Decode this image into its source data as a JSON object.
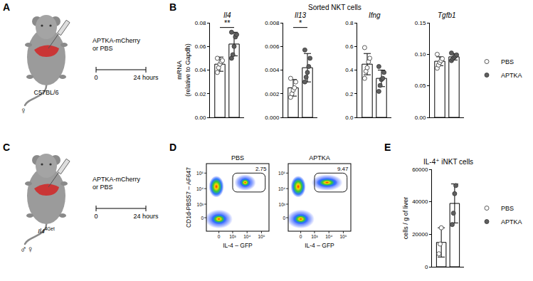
{
  "panel_labels": [
    "A",
    "B",
    "C",
    "D",
    "E"
  ],
  "group_title": "Sorted NKT cells",
  "schematics": [
    {
      "strain": "C57BL/6",
      "injection": [
        "APTKA-mCherry",
        "or PBS"
      ],
      "timeline": [
        "0",
        "24 hours"
      ],
      "sex": "♀"
    },
    {
      "strain": "Il4",
      "strain_sup": "4Get",
      "injection": [
        "APTKA-mCherry",
        "or PBS"
      ],
      "timeline": [
        "0",
        "24 hours"
      ],
      "sex": "♂♀"
    }
  ],
  "flow": {
    "x_label": "IL-4 – GFP",
    "y_label": "CD1d-PBS57 – AF647",
    "x_ticks": [
      "0",
      "10³",
      "10⁴",
      "10⁵"
    ],
    "y_ticks": [
      "0",
      "10³",
      "10⁴",
      "10⁵"
    ],
    "plots": [
      {
        "title": "PBS",
        "gate_percent": 2.75
      },
      {
        "title": "APTKA",
        "gate_percent": 9.47
      }
    ]
  },
  "chart_data": [
    {
      "type": "bar",
      "title": "Il4",
      "ylabel": [
        "mRNA",
        "(relative to Gapdh)"
      ],
      "categories": [
        "PBS",
        "APTKA"
      ],
      "values": [
        0.045,
        0.062
      ],
      "error": [
        0.006,
        0.01
      ],
      "points": [
        [
          0.038,
          0.042,
          0.045,
          0.047,
          0.048,
          0.05
        ],
        [
          0.05,
          0.053,
          0.06,
          0.068,
          0.07,
          0.072
        ]
      ],
      "colors": [
        "#ffffff",
        "#5f5f5f"
      ],
      "annotation": "**",
      "ylim": [
        0,
        0.08
      ],
      "yticks": [
        {
          "value": 0,
          "label": "0.00"
        },
        {
          "value": 0.02,
          "label": "0.02"
        },
        {
          "value": 0.04,
          "label": "0.04"
        },
        {
          "value": 0.06,
          "label": "0.06"
        },
        {
          "value": 0.08,
          "label": "0.08"
        }
      ],
      "grid": false,
      "tick_labels": "y"
    },
    {
      "type": "bar",
      "title": "Il13",
      "categories": [
        "PBS",
        "APTKA"
      ],
      "values": [
        0.0025,
        0.0042
      ],
      "error": [
        0.0007,
        0.0012
      ],
      "points": [
        [
          0.0017,
          0.002,
          0.0023,
          0.0025,
          0.003,
          0.0033
        ],
        [
          0.003,
          0.0034,
          0.0038,
          0.0043,
          0.005,
          0.0057
        ]
      ],
      "colors": [
        "#ffffff",
        "#5f5f5f"
      ],
      "annotation": "*",
      "ylim": [
        0,
        0.008
      ],
      "yticks": [
        {
          "value": 0,
          "label": "0.000"
        },
        {
          "value": 0.002,
          "label": "0.002"
        },
        {
          "value": 0.004,
          "label": "0.004"
        },
        {
          "value": 0.006,
          "label": "0.006"
        },
        {
          "value": 0.008,
          "label": "0.008"
        }
      ],
      "grid": false,
      "tick_labels": "y"
    },
    {
      "type": "bar",
      "title": "Ifng",
      "categories": [
        "PBS",
        "APTKA"
      ],
      "values": [
        0.45,
        0.33
      ],
      "error": [
        0.09,
        0.07
      ],
      "points": [
        [
          0.33,
          0.39,
          0.42,
          0.47,
          0.5,
          0.59
        ],
        [
          0.22,
          0.27,
          0.32,
          0.33,
          0.38,
          0.43
        ]
      ],
      "colors": [
        "#ffffff",
        "#5f5f5f"
      ],
      "ylim": [
        0,
        0.8
      ],
      "yticks": [
        {
          "value": 0,
          "label": "0.0"
        },
        {
          "value": 0.2,
          "label": "0.2"
        },
        {
          "value": 0.4,
          "label": "0.4"
        },
        {
          "value": 0.6,
          "label": "0.6"
        },
        {
          "value": 0.8,
          "label": "0.8"
        }
      ],
      "grid": false,
      "tick_labels": "y"
    },
    {
      "type": "bar",
      "title": "Tgfb1",
      "categories": [
        "PBS",
        "APTKA"
      ],
      "values": [
        0.089,
        0.096
      ],
      "error": [
        0.007,
        0.005
      ],
      "points": [
        [
          0.078,
          0.083,
          0.087,
          0.09,
          0.093,
          0.1
        ],
        [
          0.09,
          0.093,
          0.095,
          0.097,
          0.099,
          0.102
        ]
      ],
      "colors": [
        "#ffffff",
        "#5f5f5f"
      ],
      "ylim": [
        0,
        0.15
      ],
      "yticks": [
        {
          "value": 0,
          "label": "0.00"
        },
        {
          "value": 0.05,
          "label": "0.05"
        },
        {
          "value": 0.1,
          "label": "0.10"
        },
        {
          "value": 0.15,
          "label": "0.15"
        }
      ],
      "grid": false,
      "tick_labels": "y",
      "legend": "right"
    },
    {
      "type": "bar",
      "title": "IL-4⁺ iNKT cells",
      "ylabel": [
        "cells / g of liver"
      ],
      "categories": [
        "PBS",
        "APTKA"
      ],
      "values": [
        15000,
        39000
      ],
      "error": [
        9000,
        12000
      ],
      "points": [
        [
          8000,
          14000,
          24000
        ],
        [
          26000,
          33000,
          45000,
          50000
        ]
      ],
      "colors": [
        "#ffffff",
        "#5f5f5f"
      ],
      "ylim": [
        0,
        60000
      ],
      "yticks": [
        0,
        20000,
        40000,
        60000
      ],
      "grid": false,
      "tick_labels": "y",
      "legend": "right"
    }
  ]
}
